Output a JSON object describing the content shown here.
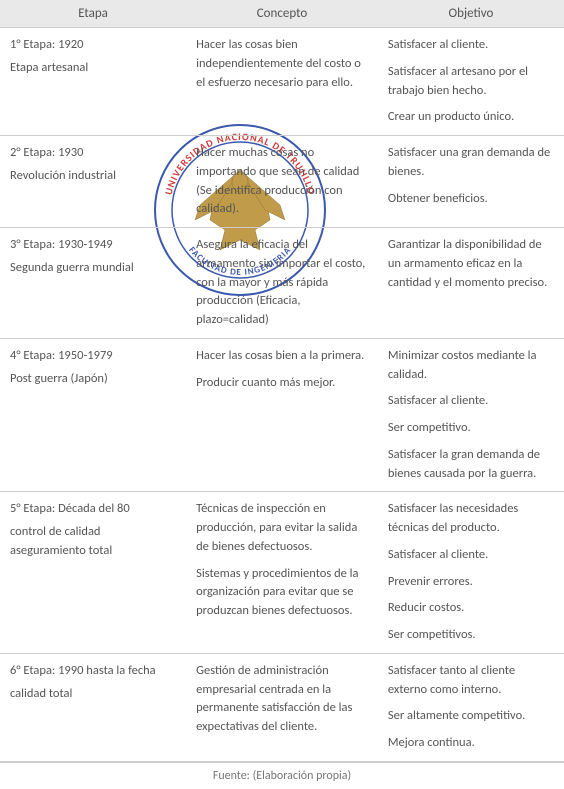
{
  "table": {
    "headers": {
      "etapa": "Etapa",
      "concepto": "Concepto",
      "objetivo": "Objetivo"
    },
    "rows": [
      {
        "etapa_title": "1° Etapa: 1920",
        "etapa_sub": "Etapa artesanal",
        "concepto": [
          "Hacer las cosas bien independientemente del costo o el esfuerzo necesario para ello."
        ],
        "objetivo": [
          "Satisfacer al cliente.",
          "Satisfacer al artesano por el trabajo bien hecho.",
          "Crear un producto único."
        ]
      },
      {
        "etapa_title": "2° Etapa: 1930",
        "etapa_sub": "Revolución industrial",
        "concepto": [
          "Hacer muchas cosas no importando que sean de calidad (Se identifica producción con calidad)."
        ],
        "objetivo": [
          "Satisfacer una gran demanda de bienes.",
          "Obtener beneficios."
        ]
      },
      {
        "etapa_title": "3° Etapa: 1930-1949",
        "etapa_sub": "Segunda guerra mundial",
        "concepto": [
          "Asegura la eficacia del armamento sin importar el costo, con la mayor y más rápida producción (Eficacia, plazo=calidad)"
        ],
        "objetivo": [
          "Garantizar la disponibilidad de un armamento eficaz en la cantidad y el momento preciso."
        ]
      },
      {
        "etapa_title": "4° Etapa: 1950-1979",
        "etapa_sub": "Post guerra (Japón)",
        "concepto": [
          "Hacer las cosas bien a la primera.",
          "Producir cuanto más mejor."
        ],
        "objetivo": [
          "Minimizar costos mediante la calidad.",
          "Satisfacer al cliente.",
          "Ser competitivo.",
          "Satisfacer la gran demanda de bienes causada por la guerra."
        ]
      },
      {
        "etapa_title": "5° Etapa: Década del 80",
        "etapa_sub": "control de calidad aseguramiento total",
        "concepto": [
          "Técnicas de inspección en producción, para evitar la salida de bienes defectuosos.",
          "Sistemas y procedimientos de la organización para evitar que se produzcan bienes defectuosos."
        ],
        "objetivo": [
          "Satisfacer las necesidades técnicas del producto.",
          "Satisfacer al cliente.",
          "Prevenir errores.",
          "Reducir costos.",
          "Ser competitivos."
        ]
      },
      {
        "etapa_title": "6° Etapa: 1990 hasta la fecha",
        "etapa_sub": "calidad total",
        "concepto": [
          "Gestión de administración empresarial centrada en la permanente satisfacción de las expectativas del cliente."
        ],
        "objetivo": [
          "Satisfacer tanto al cliente externo como interno.",
          "Ser altamente competitivo.",
          "Mejora continua."
        ]
      }
    ]
  },
  "footer": "Fuente: (Elaboración propia)",
  "colors": {
    "header_bg": "#e9e9e9",
    "border": "#cccccc",
    "text": "#555555",
    "background": "#ffffff"
  },
  "watermark": {
    "outer_text_top": "UNIVERSIDAD NACIONAL DE TRUJILLO",
    "outer_text_bottom": "FACULTAD DE INGENIERIA",
    "ring_color_red": "#c91818",
    "ring_color_blue": "#1a3d9e",
    "ring_border": "#1a3d9e",
    "eagle_color": "#b68a2a"
  }
}
